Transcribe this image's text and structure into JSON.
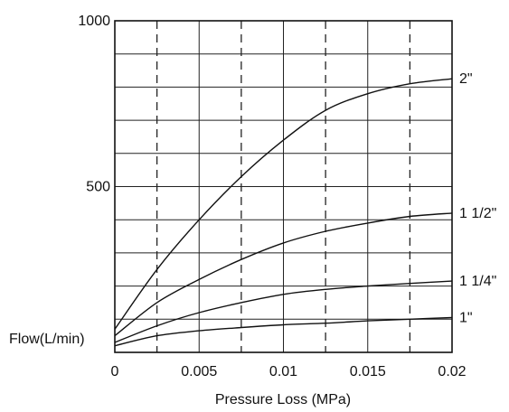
{
  "chart_data": {
    "type": "line",
    "title": "",
    "xlabel": "Pressure Loss (MPa)",
    "ylabel": "Flow(L/min)",
    "xlim": [
      0,
      0.02
    ],
    "ylim": [
      0,
      1000
    ],
    "x_ticks": [
      0,
      0.005,
      0.01,
      0.015,
      0.02
    ],
    "x_tick_labels": [
      "0",
      "0.005",
      "0.01",
      "0.015",
      "0.02"
    ],
    "y_ticks": [
      500,
      1000
    ],
    "y_tick_labels": [
      "500",
      "1000"
    ],
    "y_grid": [
      100,
      200,
      300,
      400,
      500,
      600,
      700,
      800,
      900,
      1000
    ],
    "x_grid_solid": [
      0.005,
      0.01,
      0.015,
      0.02
    ],
    "x_grid_dashed": [
      0.0025,
      0.0075,
      0.0125,
      0.0175
    ],
    "grid": true,
    "legend": "series labels at right end of each curve",
    "series": [
      {
        "name": "2\"",
        "x": [
          0,
          0.0025,
          0.005,
          0.0075,
          0.01,
          0.0125,
          0.015,
          0.0175,
          0.02
        ],
        "values": [
          70,
          250,
          400,
          530,
          640,
          730,
          780,
          810,
          825
        ]
      },
      {
        "name": "1 1/2\"",
        "x": [
          0,
          0.0025,
          0.005,
          0.0075,
          0.01,
          0.0125,
          0.015,
          0.0175,
          0.02
        ],
        "values": [
          50,
          150,
          220,
          280,
          330,
          365,
          390,
          410,
          420
        ]
      },
      {
        "name": "1 1/4\"",
        "x": [
          0,
          0.0025,
          0.005,
          0.0075,
          0.01,
          0.0125,
          0.015,
          0.0175,
          0.02
        ],
        "values": [
          30,
          80,
          120,
          150,
          175,
          190,
          200,
          208,
          215
        ]
      },
      {
        "name": "1\"",
        "x": [
          0,
          0.0025,
          0.005,
          0.0075,
          0.01,
          0.0125,
          0.015,
          0.0175,
          0.02
        ],
        "values": [
          20,
          50,
          65,
          75,
          83,
          88,
          95,
          100,
          105
        ]
      }
    ]
  }
}
